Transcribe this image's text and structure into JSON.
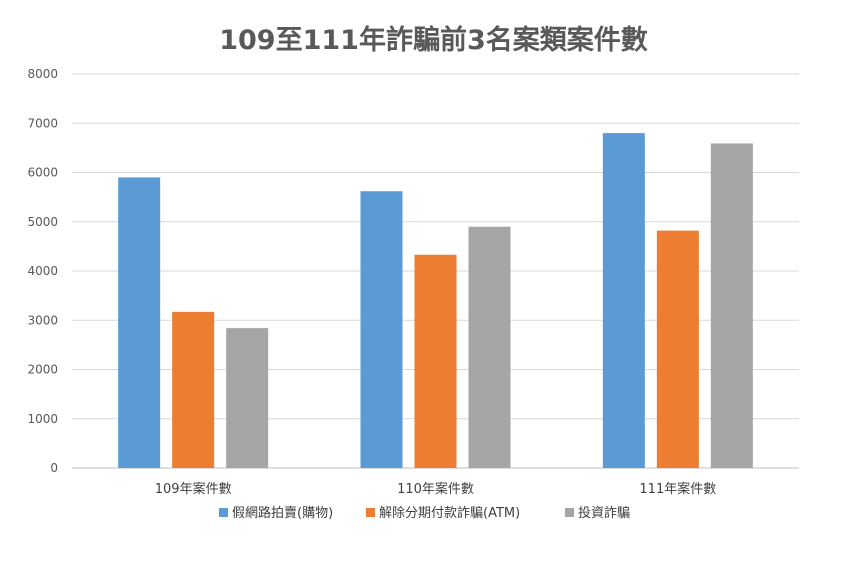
{
  "chart_data": {
    "type": "bar",
    "title": "109至111年詐騙前3名案類案件數",
    "xlabel": "",
    "ylabel": "",
    "categories": [
      "109年案件數",
      "110年案件數",
      "111年案件數"
    ],
    "series": [
      {
        "name": "假網路拍賣(購物)",
        "values": [
          5900,
          5620,
          6800
        ],
        "color": "#5B9BD5"
      },
      {
        "name": "解除分期付款詐騙(ATM)",
        "values": [
          3170,
          4330,
          4820
        ],
        "color": "#ED7D31"
      },
      {
        "name": "投資詐騙",
        "values": [
          2840,
          4900,
          6590
        ],
        "color": "#A5A5A5"
      }
    ],
    "ylim": [
      0,
      8000
    ],
    "yticks": [
      0,
      1000,
      2000,
      3000,
      4000,
      5000,
      6000,
      7000,
      8000
    ],
    "grid": true,
    "legend_position": "bottom"
  }
}
